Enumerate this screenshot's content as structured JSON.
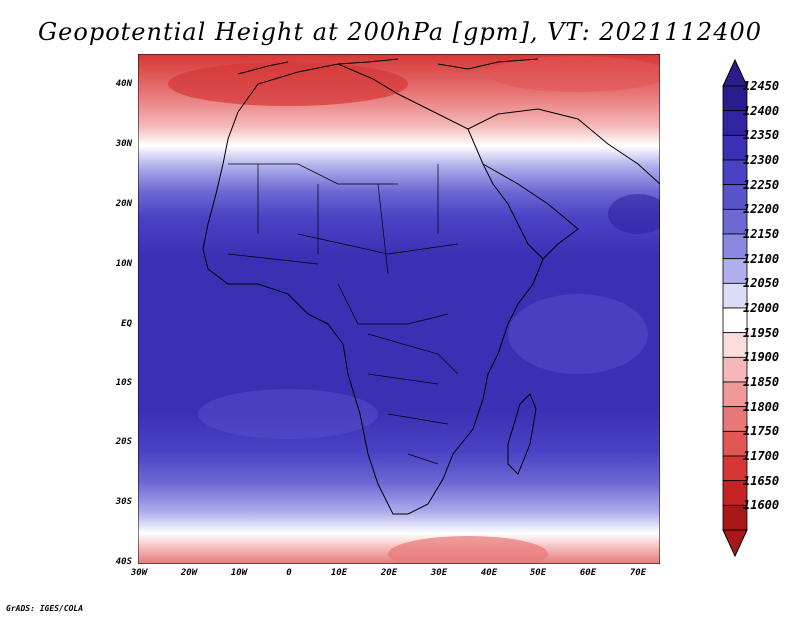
{
  "title": "Geopotential Height at 200hPa [gpm], VT: 2021112400",
  "credit": "GrADS: IGES/COLA",
  "map": {
    "lon_range": [
      -30,
      75
    ],
    "lat_range": [
      -40,
      45
    ],
    "x_ticks": [
      "30W",
      "20W",
      "10W",
      "0",
      "10E",
      "20E",
      "30E",
      "40E",
      "50E",
      "60E",
      "70E"
    ],
    "y_ticks": [
      "40N",
      "30N",
      "20N",
      "10N",
      "EQ",
      "10S",
      "20S",
      "30S",
      "40S"
    ]
  },
  "colorbar": {
    "levels": [
      12450,
      12400,
      12350,
      12300,
      12250,
      12200,
      12150,
      12100,
      12050,
      12000,
      11950,
      11900,
      11850,
      11800,
      11750,
      11700,
      11650,
      11600
    ],
    "colors": [
      "#2a1c8c",
      "#3024a0",
      "#3a30b4",
      "#4a42c4",
      "#5a54cc",
      "#6c68d4",
      "#8a88e0",
      "#b0b0ec",
      "#dcdcf6",
      "#ffffff",
      "#fbdcdc",
      "#f4b8b8",
      "#ee9a9a",
      "#e87878",
      "#e25656",
      "#d63636",
      "#c42424",
      "#a81818"
    ]
  }
}
